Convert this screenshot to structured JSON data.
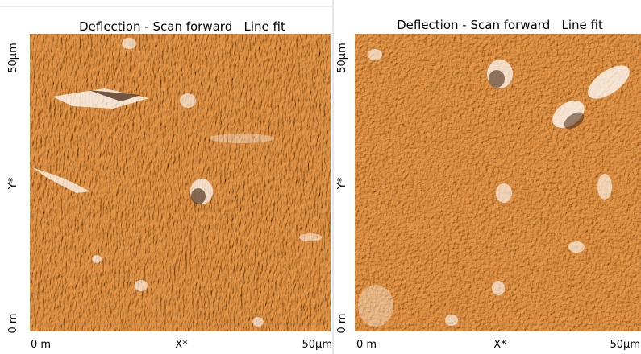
{
  "panels": [
    {
      "title": "Deflection - Scan forward   Line fit",
      "y_axis": {
        "top": "50µm",
        "middle": "Y*",
        "bottom": "0 m"
      },
      "x_axis": {
        "left": "0 m",
        "middle": "X*",
        "right": "50µm"
      }
    },
    {
      "title": "Deflection - Scan forward   Line fit",
      "y_axis": {
        "top": "50µm",
        "middle": "Y*",
        "bottom": "0 m"
      },
      "x_axis": {
        "left": "0 m",
        "middle": "X*",
        "right": "50µm"
      }
    }
  ]
}
